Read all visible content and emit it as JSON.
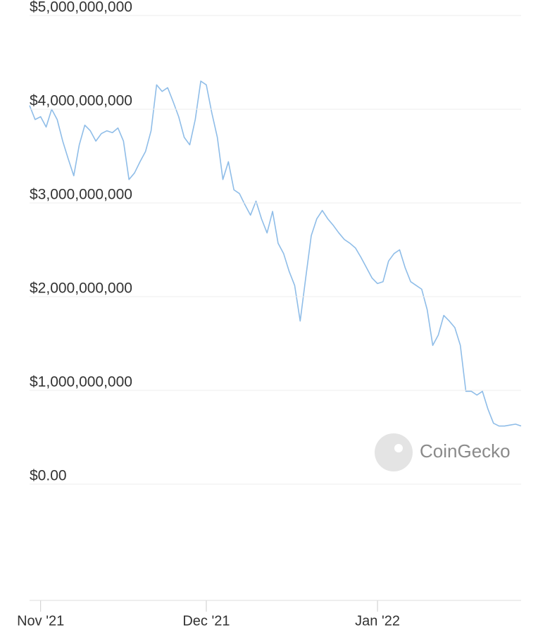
{
  "chart_data": {
    "type": "line",
    "categories": [
      null,
      null,
      "Nov '21",
      null,
      null,
      null,
      null,
      null,
      null,
      null,
      null,
      null,
      null,
      null,
      null,
      null,
      null,
      null,
      null,
      null,
      null,
      null,
      null,
      null,
      null,
      null,
      null,
      null,
      null,
      null,
      null,
      null,
      "Dec '21",
      null,
      null,
      null,
      null,
      null,
      null,
      null,
      null,
      null,
      null,
      null,
      null,
      null,
      null,
      null,
      null,
      null,
      null,
      null,
      null,
      null,
      null,
      null,
      null,
      null,
      null,
      null,
      null,
      null,
      null,
      "Jan '22",
      null,
      null,
      null,
      null,
      null,
      null,
      null,
      null,
      null,
      null,
      null,
      null,
      null,
      null,
      null,
      null,
      null,
      null,
      null,
      null,
      null,
      null,
      null,
      null,
      null,
      null
    ],
    "values": [
      4040000000,
      3890000000,
      3920000000,
      3810000000,
      4000000000,
      3890000000,
      3660000000,
      3470000000,
      3290000000,
      3620000000,
      3830000000,
      3770000000,
      3660000000,
      3740000000,
      3770000000,
      3750000000,
      3800000000,
      3660000000,
      3250000000,
      3320000000,
      3440000000,
      3550000000,
      3770000000,
      4260000000,
      4190000000,
      4230000000,
      4080000000,
      3920000000,
      3700000000,
      3620000000,
      3890000000,
      4300000000,
      4260000000,
      3960000000,
      3700000000,
      3250000000,
      3440000000,
      3140000000,
      3100000000,
      2980000000,
      2870000000,
      3020000000,
      2830000000,
      2680000000,
      2910000000,
      2570000000,
      2460000000,
      2270000000,
      2120000000,
      1740000000,
      2200000000,
      2650000000,
      2830000000,
      2920000000,
      2830000000,
      2760000000,
      2680000000,
      2610000000,
      2570000000,
      2520000000,
      2420000000,
      2310000000,
      2200000000,
      2140000000,
      2160000000,
      2380000000,
      2460000000,
      2500000000,
      2310000000,
      2160000000,
      2120000000,
      2080000000,
      1860000000,
      1480000000,
      1590000000,
      1800000000,
      1740000000,
      1670000000,
      1480000000,
      990000000,
      990000000,
      950000000,
      990000000,
      800000000,
      650000000,
      620000000,
      620000000,
      630000000,
      640000000,
      620000000
    ],
    "color": "#8fbde8",
    "ylim": [
      0,
      5000000000
    ],
    "yticks": [
      {
        "value": 0,
        "label": "$0.00"
      },
      {
        "value": 1000000000,
        "label": "$1,000,000,000"
      },
      {
        "value": 2000000000,
        "label": "$2,000,000,000"
      },
      {
        "value": 3000000000,
        "label": "$3,000,000,000"
      },
      {
        "value": 4000000000,
        "label": "$4,000,000,000"
      },
      {
        "value": 5000000000,
        "label": "$5,000,000,000"
      }
    ],
    "grid": true,
    "watermark": "CoinGecko"
  }
}
